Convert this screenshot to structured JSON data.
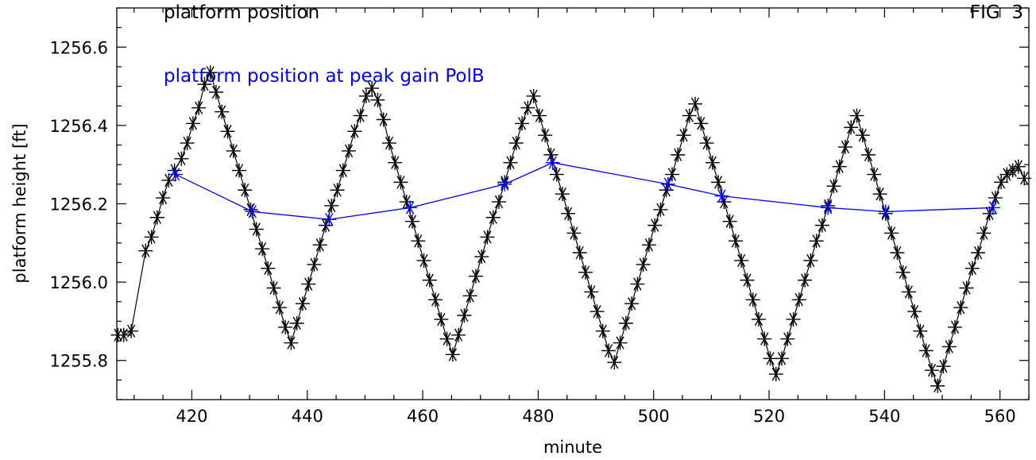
{
  "chart_data": {
    "type": "line",
    "title": "platform position",
    "fig_label": "FIG  3",
    "xlabel": "minute",
    "ylabel": "platform height [ft]",
    "xlim": [
      407,
      565
    ],
    "ylim": [
      1255.7,
      1256.7
    ],
    "x_ticks": [
      420,
      440,
      460,
      480,
      500,
      520,
      540,
      560
    ],
    "y_ticks": [
      1255.8,
      1256.0,
      1256.2,
      1256.4,
      1256.6
    ],
    "y_tick_labels": [
      "1255.8",
      "1256.0",
      "1256.2",
      "1256.4",
      "1256.6"
    ],
    "grid": false,
    "colors": {
      "axes": "#000000",
      "main_series": "#000000",
      "peak_series": "#0000ff"
    },
    "series": [
      {
        "marker": "asterisk",
        "color": "#000000",
        "values": [
          [
            407.2,
            1255.865
          ],
          [
            408.2,
            1255.865
          ],
          [
            409.5,
            1255.875
          ],
          [
            412.0,
            1256.08
          ],
          [
            413.0,
            1256.115
          ],
          [
            414.0,
            1256.165
          ],
          [
            415.0,
            1256.215
          ],
          [
            416.0,
            1256.26
          ],
          [
            417.0,
            1256.285
          ],
          [
            418.2,
            1256.315
          ],
          [
            419.2,
            1256.355
          ],
          [
            420.2,
            1256.405
          ],
          [
            421.2,
            1256.445
          ],
          [
            422.2,
            1256.505
          ],
          [
            423.2,
            1256.535
          ],
          [
            424.2,
            1256.485
          ],
          [
            425.2,
            1256.435
          ],
          [
            426.2,
            1256.385
          ],
          [
            427.2,
            1256.335
          ],
          [
            428.2,
            1256.285
          ],
          [
            429.2,
            1256.235
          ],
          [
            430.2,
            1256.185
          ],
          [
            431.2,
            1256.135
          ],
          [
            432.2,
            1256.085
          ],
          [
            433.2,
            1256.035
          ],
          [
            434.2,
            1255.985
          ],
          [
            435.2,
            1255.935
          ],
          [
            436.2,
            1255.885
          ],
          [
            437.2,
            1255.845
          ],
          [
            438.2,
            1255.895
          ],
          [
            439.2,
            1255.945
          ],
          [
            440.2,
            1255.995
          ],
          [
            441.2,
            1256.045
          ],
          [
            442.2,
            1256.095
          ],
          [
            443.2,
            1256.145
          ],
          [
            444.2,
            1256.195
          ],
          [
            445.2,
            1256.235
          ],
          [
            446.2,
            1256.285
          ],
          [
            447.2,
            1256.335
          ],
          [
            448.2,
            1256.385
          ],
          [
            449.2,
            1256.425
          ],
          [
            450.2,
            1256.475
          ],
          [
            451.2,
            1256.495
          ],
          [
            452.2,
            1256.465
          ],
          [
            453.2,
            1256.415
          ],
          [
            454.2,
            1256.355
          ],
          [
            455.2,
            1256.305
          ],
          [
            456.2,
            1256.255
          ],
          [
            457.2,
            1256.205
          ],
          [
            458.2,
            1256.155
          ],
          [
            459.2,
            1256.105
          ],
          [
            460.2,
            1256.055
          ],
          [
            461.2,
            1256.005
          ],
          [
            462.2,
            1255.955
          ],
          [
            463.2,
            1255.905
          ],
          [
            464.2,
            1255.855
          ],
          [
            465.2,
            1255.815
          ],
          [
            466.2,
            1255.865
          ],
          [
            467.2,
            1255.915
          ],
          [
            468.2,
            1255.965
          ],
          [
            469.2,
            1256.015
          ],
          [
            470.2,
            1256.065
          ],
          [
            471.2,
            1256.115
          ],
          [
            472.2,
            1256.165
          ],
          [
            473.2,
            1256.205
          ],
          [
            474.2,
            1256.255
          ],
          [
            475.2,
            1256.305
          ],
          [
            476.2,
            1256.355
          ],
          [
            477.2,
            1256.405
          ],
          [
            478.2,
            1256.445
          ],
          [
            479.2,
            1256.475
          ],
          [
            480.2,
            1256.425
          ],
          [
            481.2,
            1256.375
          ],
          [
            482.2,
            1256.325
          ],
          [
            483.2,
            1256.275
          ],
          [
            484.2,
            1256.225
          ],
          [
            485.2,
            1256.175
          ],
          [
            486.2,
            1256.125
          ],
          [
            487.2,
            1256.075
          ],
          [
            488.2,
            1256.025
          ],
          [
            489.2,
            1255.975
          ],
          [
            490.2,
            1255.925
          ],
          [
            491.2,
            1255.875
          ],
          [
            492.2,
            1255.825
          ],
          [
            493.2,
            1255.795
          ],
          [
            494.2,
            1255.845
          ],
          [
            495.2,
            1255.895
          ],
          [
            496.2,
            1255.945
          ],
          [
            497.2,
            1255.995
          ],
          [
            498.2,
            1256.045
          ],
          [
            499.2,
            1256.095
          ],
          [
            500.2,
            1256.145
          ],
          [
            501.2,
            1256.185
          ],
          [
            502.2,
            1256.235
          ],
          [
            503.2,
            1256.275
          ],
          [
            504.2,
            1256.325
          ],
          [
            505.2,
            1256.375
          ],
          [
            506.2,
            1256.425
          ],
          [
            507.2,
            1256.455
          ],
          [
            508.2,
            1256.405
          ],
          [
            509.2,
            1256.355
          ],
          [
            510.2,
            1256.305
          ],
          [
            511.2,
            1256.255
          ],
          [
            512.2,
            1256.205
          ],
          [
            513.2,
            1256.155
          ],
          [
            514.2,
            1256.105
          ],
          [
            515.2,
            1256.055
          ],
          [
            516.2,
            1256.005
          ],
          [
            517.2,
            1255.955
          ],
          [
            518.2,
            1255.905
          ],
          [
            519.2,
            1255.855
          ],
          [
            520.2,
            1255.805
          ],
          [
            521.2,
            1255.765
          ],
          [
            522.2,
            1255.805
          ],
          [
            523.2,
            1255.855
          ],
          [
            524.2,
            1255.905
          ],
          [
            525.2,
            1255.955
          ],
          [
            526.2,
            1256.005
          ],
          [
            527.2,
            1256.055
          ],
          [
            528.2,
            1256.105
          ],
          [
            529.2,
            1256.145
          ],
          [
            530.2,
            1256.195
          ],
          [
            531.2,
            1256.245
          ],
          [
            532.2,
            1256.295
          ],
          [
            533.2,
            1256.345
          ],
          [
            534.2,
            1256.395
          ],
          [
            535.2,
            1256.425
          ],
          [
            536.2,
            1256.375
          ],
          [
            537.2,
            1256.325
          ],
          [
            538.2,
            1256.275
          ],
          [
            539.2,
            1256.225
          ],
          [
            540.2,
            1256.175
          ],
          [
            541.2,
            1256.125
          ],
          [
            542.2,
            1256.075
          ],
          [
            543.2,
            1256.025
          ],
          [
            544.2,
            1255.975
          ],
          [
            545.2,
            1255.925
          ],
          [
            546.2,
            1255.875
          ],
          [
            547.2,
            1255.825
          ],
          [
            548.2,
            1255.775
          ],
          [
            549.2,
            1255.735
          ],
          [
            550.2,
            1255.785
          ],
          [
            551.2,
            1255.835
          ],
          [
            552.2,
            1255.885
          ],
          [
            553.2,
            1255.935
          ],
          [
            554.2,
            1255.985
          ],
          [
            555.2,
            1256.035
          ],
          [
            556.2,
            1256.075
          ],
          [
            557.2,
            1256.125
          ],
          [
            558.2,
            1256.175
          ],
          [
            559.2,
            1256.215
          ],
          [
            560.2,
            1256.255
          ],
          [
            561.2,
            1256.275
          ],
          [
            562.2,
            1256.285
          ],
          [
            563.2,
            1256.295
          ],
          [
            564.2,
            1256.265
          ]
        ]
      },
      {
        "name": "platform position at peak gain PolB",
        "marker": "asterisk",
        "color": "#0000ff",
        "values": [
          [
            417.2,
            1256.275
          ],
          [
            430.5,
            1256.18
          ],
          [
            443.8,
            1256.16
          ],
          [
            457.8,
            1256.19
          ],
          [
            474.2,
            1256.25
          ],
          [
            482.5,
            1256.305
          ],
          [
            502.5,
            1256.25
          ],
          [
            511.8,
            1256.22
          ],
          [
            530.2,
            1256.19
          ],
          [
            540.2,
            1256.18
          ],
          [
            558.8,
            1256.19
          ]
        ]
      }
    ]
  }
}
